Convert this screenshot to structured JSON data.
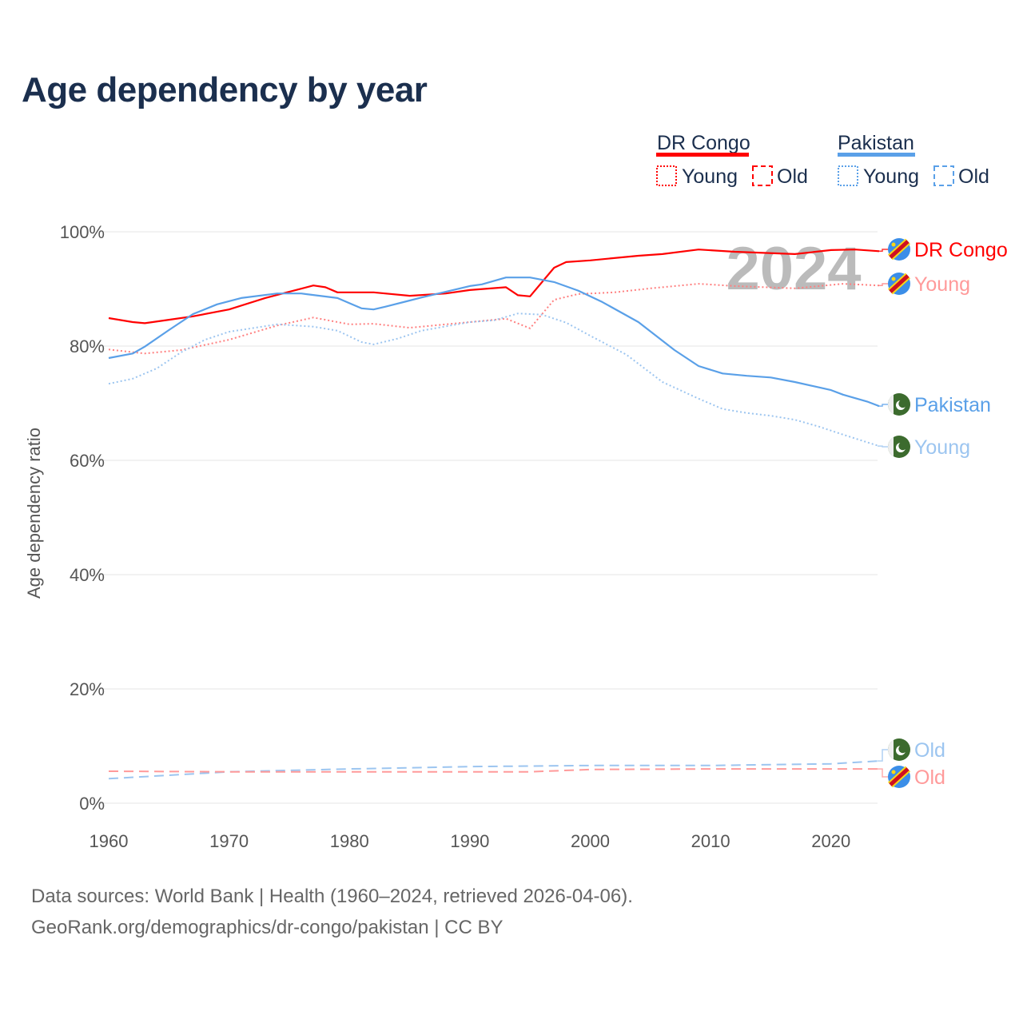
{
  "title": "Age dependency by year",
  "legend": {
    "groups": [
      {
        "name": "DR Congo",
        "color": "#ff0000",
        "items": [
          "Young",
          "Old"
        ]
      },
      {
        "name": "Pakistan",
        "color": "#5aa0e8",
        "items": [
          "Young",
          "Old"
        ]
      }
    ]
  },
  "watermark_year": "2024",
  "footer": {
    "line1": "Data sources: World Bank | Health (1960–2024, retrieved 2026-04-06).",
    "line2": "GeoRank.org/demographics/dr-congo/pakistan | CC BY"
  },
  "chart_data": {
    "type": "line",
    "title": "Age dependency by year",
    "xlabel": "",
    "ylabel": "Age dependency ratio",
    "xlim": [
      1960,
      2024
    ],
    "ylim": [
      0,
      100
    ],
    "x_ticks": [
      "1960",
      "1970",
      "1980",
      "1990",
      "2000",
      "2010",
      "2020"
    ],
    "y_ticks": [
      "0%",
      "20%",
      "40%",
      "60%",
      "80%",
      "100%"
    ],
    "grid": true,
    "series": [
      {
        "name": "DR Congo",
        "end_label": "DR Congo",
        "country": "DR Congo",
        "style": "solid",
        "color": "#ff0000",
        "label_color": "#ff0000",
        "x": [
          1960,
          1962,
          1963,
          1965,
          1967,
          1970,
          1973,
          1975,
          1977,
          1978,
          1979,
          1982,
          1985,
          1988,
          1990,
          1993,
          1994,
          1995,
          1997,
          1998,
          2000,
          2004,
          2006,
          2009,
          2012,
          2017,
          2020,
          2022,
          2024
        ],
        "y": [
          84.9,
          84.2,
          84.0,
          84.6,
          85.2,
          86.4,
          88.4,
          89.5,
          90.6,
          90.3,
          89.4,
          89.4,
          88.8,
          89.2,
          89.8,
          90.3,
          88.9,
          88.7,
          93.7,
          94.7,
          95.0,
          95.8,
          96.1,
          96.9,
          96.5,
          96.1,
          96.8,
          96.9,
          96.6
        ]
      },
      {
        "name": "DR Congo Young",
        "end_label": "Young",
        "country": "DR Congo",
        "style": "dotted",
        "color": "#ff8080",
        "label_color": "#ff9a9a",
        "x": [
          1960,
          1963,
          1966,
          1970,
          1974,
          1977,
          1980,
          1982,
          1985,
          1990,
          1993,
          1995,
          1997,
          1999,
          2002,
          2005,
          2009,
          2012,
          2017,
          2021,
          2024
        ],
        "y": [
          79.4,
          78.7,
          79.3,
          81.1,
          83.6,
          85.0,
          83.8,
          83.9,
          83.2,
          84.2,
          84.8,
          83.1,
          88.1,
          89.1,
          89.4,
          90.1,
          90.9,
          90.5,
          90.1,
          90.9,
          90.6
        ]
      },
      {
        "name": "Pakistan",
        "end_label": "Pakistan",
        "country": "Pakistan",
        "style": "solid",
        "color": "#5aa0e8",
        "label_color": "#5aa0e8",
        "x": [
          1960,
          1962,
          1963,
          1965,
          1967,
          1969,
          1971,
          1974,
          1976,
          1979,
          1981,
          1982,
          1983,
          1986,
          1990,
          1991,
          1993,
          1995,
          1997,
          1999,
          2001,
          2004,
          2007,
          2009,
          2011,
          2013,
          2015,
          2017,
          2020,
          2021,
          2023,
          2024
        ],
        "y": [
          77.9,
          78.7,
          79.9,
          82.8,
          85.6,
          87.3,
          88.4,
          89.2,
          89.2,
          88.4,
          86.6,
          86.4,
          86.9,
          88.5,
          90.5,
          90.8,
          92.0,
          92.0,
          91.2,
          89.7,
          87.7,
          84.2,
          79.3,
          76.5,
          75.2,
          74.8,
          74.5,
          73.7,
          72.3,
          71.5,
          70.3,
          69.5
        ]
      },
      {
        "name": "Pakistan Young",
        "end_label": "Young",
        "country": "Pakistan",
        "style": "dotted",
        "color": "#9cc5f0",
        "label_color": "#9cc5f0",
        "x": [
          1960,
          1962,
          1964,
          1966,
          1968,
          1970,
          1974,
          1977,
          1979,
          1981,
          1982,
          1984,
          1986,
          1990,
          1992,
          1994,
          1996,
          1998,
          2000,
          2003,
          2006,
          2009,
          2011,
          2013,
          2015,
          2017,
          2019,
          2021,
          2024
        ],
        "y": [
          73.4,
          74.3,
          76.1,
          78.9,
          81.1,
          82.5,
          83.8,
          83.4,
          82.7,
          80.7,
          80.3,
          81.3,
          82.7,
          84.2,
          84.5,
          85.7,
          85.5,
          84.1,
          81.8,
          78.5,
          73.7,
          70.8,
          69.0,
          68.3,
          67.8,
          67.1,
          65.9,
          64.5,
          62.5
        ]
      },
      {
        "name": "Pakistan Old",
        "end_label": "Old",
        "country": "Pakistan",
        "style": "dashed",
        "color": "#9cc5f0",
        "label_color": "#9cc5f0",
        "x": [
          1960,
          1970,
          1980,
          1990,
          2000,
          2010,
          2020,
          2024
        ],
        "y": [
          4.3,
          5.5,
          6.0,
          6.4,
          6.6,
          6.6,
          6.9,
          7.4
        ]
      },
      {
        "name": "DR Congo Old",
        "end_label": "Old",
        "country": "DR Congo",
        "style": "dashed",
        "color": "#ff9a9a",
        "label_color": "#ff9a9a",
        "x": [
          1960,
          1970,
          1980,
          1995,
          2000,
          2010,
          2024
        ],
        "y": [
          5.6,
          5.5,
          5.5,
          5.5,
          5.9,
          6.0,
          6.0
        ]
      }
    ]
  }
}
